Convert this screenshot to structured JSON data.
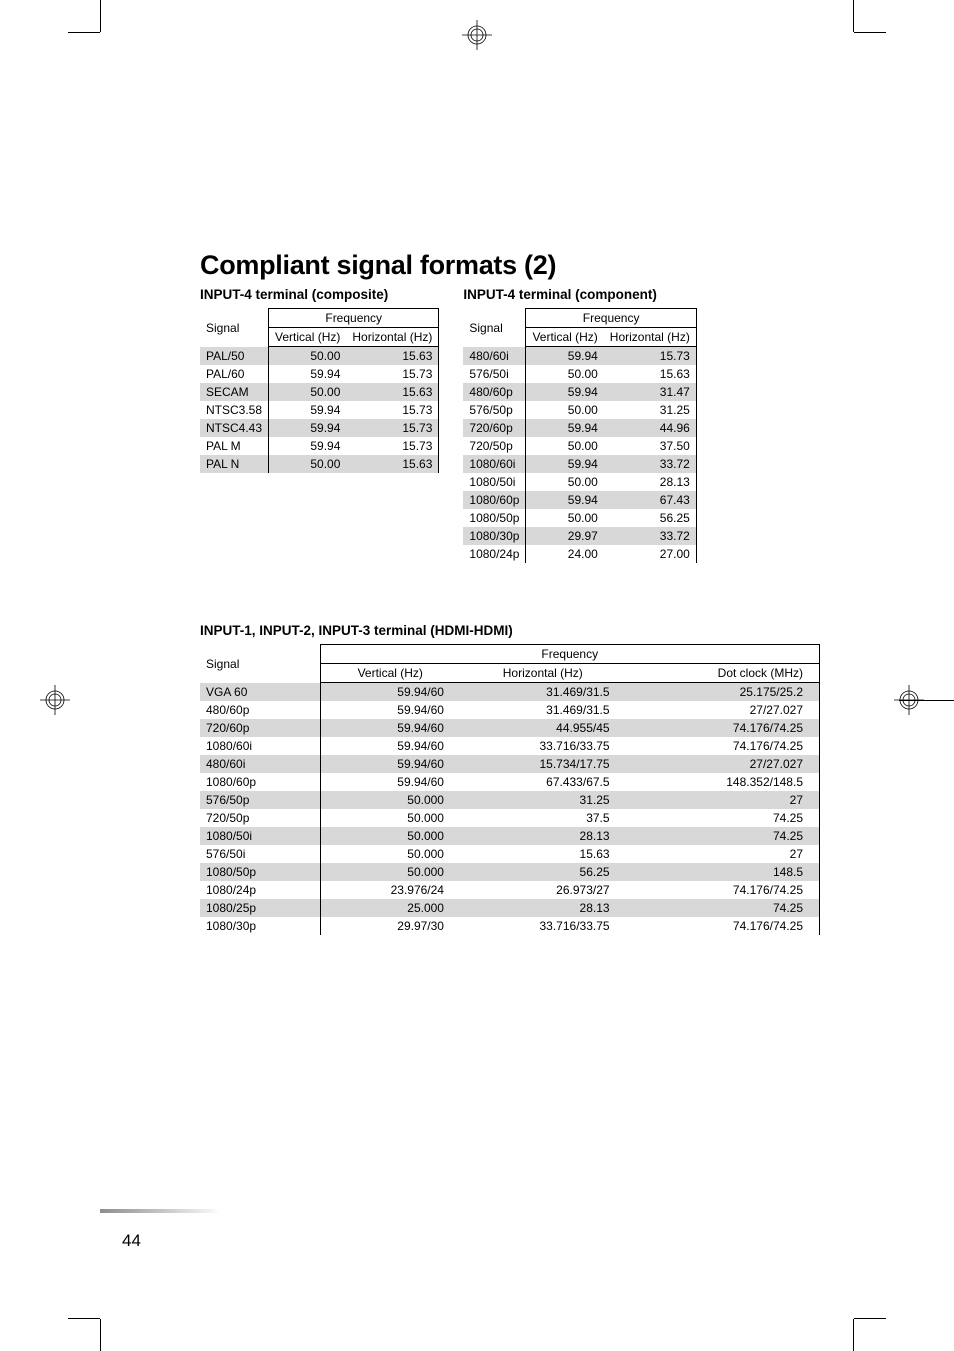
{
  "title": "Compliant signal formats (2)",
  "page_number": "44",
  "colors": {
    "stripe": "#d8d8d8",
    "text": "#000000",
    "bg": "#ffffff",
    "rule": "#000000"
  },
  "composite": {
    "heading": "INPUT-4 terminal (composite)",
    "col_signal": "Signal",
    "col_freq": "Frequency",
    "col_v": "Vertical (Hz)",
    "col_h": "Horizontal (Hz)",
    "rows": [
      {
        "signal": "PAL/50",
        "v": "50.00",
        "h": "15.63"
      },
      {
        "signal": "PAL/60",
        "v": "59.94",
        "h": "15.73"
      },
      {
        "signal": "SECAM",
        "v": "50.00",
        "h": "15.63"
      },
      {
        "signal": "NTSC3.58",
        "v": "59.94",
        "h": "15.73"
      },
      {
        "signal": "NTSC4.43",
        "v": "59.94",
        "h": "15.73"
      },
      {
        "signal": "PAL M",
        "v": "59.94",
        "h": "15.73"
      },
      {
        "signal": "PAL N",
        "v": "50.00",
        "h": "15.63"
      }
    ]
  },
  "component": {
    "heading": "INPUT-4 terminal (component)",
    "col_signal": "Signal",
    "col_freq": "Frequency",
    "col_v": "Vertical (Hz)",
    "col_h": "Horizontal (Hz)",
    "rows": [
      {
        "signal": "480/60i",
        "v": "59.94",
        "h": "15.73"
      },
      {
        "signal": "576/50i",
        "v": "50.00",
        "h": "15.63"
      },
      {
        "signal": "480/60p",
        "v": "59.94",
        "h": "31.47"
      },
      {
        "signal": "576/50p",
        "v": "50.00",
        "h": "31.25"
      },
      {
        "signal": "720/60p",
        "v": "59.94",
        "h": "44.96"
      },
      {
        "signal": "720/50p",
        "v": "50.00",
        "h": "37.50"
      },
      {
        "signal": "1080/60i",
        "v": "59.94",
        "h": "33.72"
      },
      {
        "signal": "1080/50i",
        "v": "50.00",
        "h": "28.13"
      },
      {
        "signal": "1080/60p",
        "v": "59.94",
        "h": "67.43"
      },
      {
        "signal": "1080/50p",
        "v": "50.00",
        "h": "56.25"
      },
      {
        "signal": "1080/30p",
        "v": "29.97",
        "h": "33.72"
      },
      {
        "signal": "1080/24p",
        "v": "24.00",
        "h": "27.00"
      }
    ]
  },
  "hdmi": {
    "heading": "INPUT-1, INPUT-2, INPUT-3 terminal (HDMI-HDMI)",
    "col_signal": "Signal",
    "col_freq": "Frequency",
    "col_v": "Vertical (Hz)",
    "col_h": "Horizontal (Hz)",
    "col_dot": "Dot clock (MHz)",
    "rows": [
      {
        "signal": "VGA 60",
        "v": "59.94/60",
        "h": "31.469/31.5",
        "d": "25.175/25.2"
      },
      {
        "signal": "480/60p",
        "v": "59.94/60",
        "h": "31.469/31.5",
        "d": "27/27.027"
      },
      {
        "signal": "720/60p",
        "v": "59.94/60",
        "h": "44.955/45",
        "d": "74.176/74.25"
      },
      {
        "signal": "1080/60i",
        "v": "59.94/60",
        "h": "33.716/33.75",
        "d": "74.176/74.25"
      },
      {
        "signal": "480/60i",
        "v": "59.94/60",
        "h": "15.734/17.75",
        "d": "27/27.027"
      },
      {
        "signal": "1080/60p",
        "v": "59.94/60",
        "h": "67.433/67.5",
        "d": "148.352/148.5"
      },
      {
        "signal": "576/50p",
        "v": "50.000",
        "h": "31.25",
        "d": "27"
      },
      {
        "signal": "720/50p",
        "v": "50.000",
        "h": "37.5",
        "d": "74.25"
      },
      {
        "signal": "1080/50i",
        "v": "50.000",
        "h": "28.13",
        "d": "74.25"
      },
      {
        "signal": "576/50i",
        "v": "50.000",
        "h": "15.63",
        "d": "27"
      },
      {
        "signal": "1080/50p",
        "v": "50.000",
        "h": "56.25",
        "d": "148.5"
      },
      {
        "signal": "1080/24p",
        "v": "23.976/24",
        "h": "26.973/27",
        "d": "74.176/74.25"
      },
      {
        "signal": "1080/25p",
        "v": "25.000",
        "h": "28.13",
        "d": "74.25"
      },
      {
        "signal": "1080/30p",
        "v": "29.97/30",
        "h": "33.716/33.75",
        "d": "74.176/74.25"
      }
    ]
  }
}
